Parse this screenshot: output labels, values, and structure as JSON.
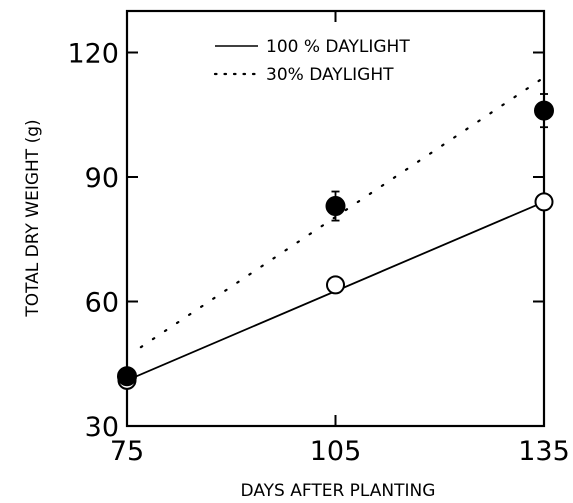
{
  "chart_data": {
    "type": "scatter",
    "xlabel": "DAYS AFTER PLANTING",
    "ylabel": "TOTAL DRY WEIGHT (g)",
    "xlim": [
      75,
      135
    ],
    "ylim": [
      30,
      130
    ],
    "xticks": [
      75,
      105,
      135
    ],
    "yticks": [
      30,
      60,
      90,
      120
    ],
    "legend_position": "top-center",
    "series": [
      {
        "name": "100 % DAYLIGHT",
        "marker": "open-circle",
        "line": "solid",
        "points": [
          {
            "x": 75,
            "y": 41
          },
          {
            "x": 105,
            "y": 64
          },
          {
            "x": 135,
            "y": 84
          }
        ],
        "fit_line": [
          {
            "x": 75,
            "y": 41
          },
          {
            "x": 135,
            "y": 84
          }
        ]
      },
      {
        "name": "30% DAYLIGHT",
        "marker": "filled-circle",
        "line": "dotted",
        "points": [
          {
            "x": 75,
            "y": 42,
            "err": 0
          },
          {
            "x": 105,
            "y": 83,
            "err": 3.5
          },
          {
            "x": 135,
            "y": 106,
            "err": 4
          }
        ],
        "fit_line": [
          {
            "x": 77,
            "y": 49
          },
          {
            "x": 135,
            "y": 114
          }
        ]
      }
    ]
  }
}
